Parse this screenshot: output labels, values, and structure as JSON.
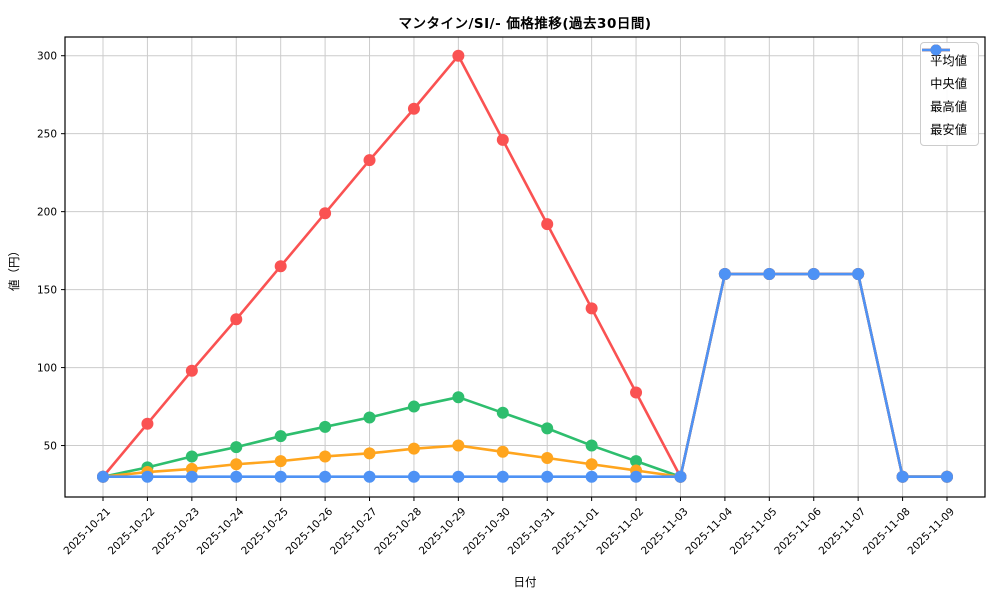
{
  "window": {
    "kind": "static-chart-image"
  },
  "chart_data": {
    "type": "line",
    "title": "マンタイン/SI/- 価格推移(過去30日間)",
    "xlabel": "日付",
    "ylabel": "値（円）",
    "categories": [
      "2025-10-21",
      "2025-10-22",
      "2025-10-23",
      "2025-10-24",
      "2025-10-25",
      "2025-10-26",
      "2025-10-27",
      "2025-10-28",
      "2025-10-29",
      "2025-10-30",
      "2025-10-31",
      "2025-11-01",
      "2025-11-02",
      "2025-11-03",
      "2025-11-04",
      "2025-11-05",
      "2025-11-06",
      "2025-11-07",
      "2025-11-08",
      "2025-11-09"
    ],
    "series": [
      {
        "name": "平均値",
        "color": "#2ebe6e",
        "values": [
          30,
          36,
          43,
          49,
          56,
          62,
          68,
          75,
          81,
          71,
          61,
          50,
          40,
          30,
          160,
          160,
          160,
          160,
          30,
          30
        ]
      },
      {
        "name": "中央値",
        "color": "#ffa51e",
        "values": [
          30,
          33,
          35,
          38,
          40,
          43,
          45,
          48,
          50,
          46,
          42,
          38,
          34,
          30,
          160,
          160,
          160,
          160,
          30,
          30
        ]
      },
      {
        "name": "最高値",
        "color": "#fa5252",
        "values": [
          30,
          64,
          98,
          131,
          165,
          199,
          233,
          266,
          300,
          246,
          192,
          138,
          84,
          30,
          160,
          160,
          160,
          160,
          30,
          30
        ]
      },
      {
        "name": "最安値",
        "color": "#4e92f5",
        "values": [
          30,
          30,
          30,
          30,
          30,
          30,
          30,
          30,
          30,
          30,
          30,
          30,
          30,
          30,
          160,
          160,
          160,
          160,
          30,
          30
        ]
      }
    ],
    "yticks": [
      50,
      100,
      150,
      200,
      250,
      300
    ],
    "ylim": [
      17,
      312
    ],
    "grid": true,
    "grid_color": "#cccccc",
    "spine_color": "#000000",
    "legend_position": "upper right",
    "x_tick_rotation_deg": 45
  }
}
